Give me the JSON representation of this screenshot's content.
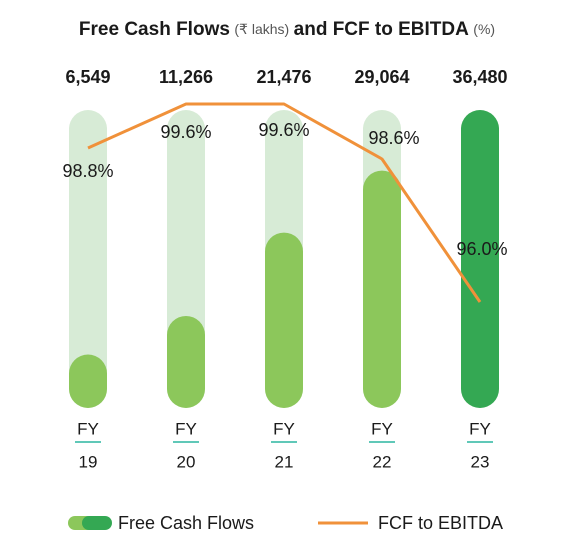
{
  "chart_data": {
    "type": "bar_line",
    "title": [
      "Free Cash Flows",
      "(₹ lakhs)",
      "and FCF to EBITDA",
      "(%)"
    ],
    "categories": [
      [
        "FY",
        "19"
      ],
      [
        "FY",
        "20"
      ],
      [
        "FY",
        "21"
      ],
      [
        "FY",
        "22"
      ],
      [
        "FY",
        "23"
      ]
    ],
    "series": [
      {
        "name": "Free Cash Flows",
        "type": "bar",
        "colors": [
          "#8cc75b",
          "#8cc75b",
          "#8cc75b",
          "#8cc75b",
          "#34a853"
        ],
        "values": [
          6549,
          11266,
          21476,
          29064,
          36480
        ],
        "value_labels": [
          "6,549",
          "11,266",
          "21,476",
          "29,064",
          "36,480"
        ]
      },
      {
        "name": "FCF to EBITDA",
        "type": "line",
        "axis": "y2",
        "color": "#f0913a",
        "values": [
          98.8,
          99.6,
          99.6,
          98.6,
          96.0
        ],
        "value_labels": [
          "98.8%",
          "99.6%",
          "99.6%",
          "98.6%",
          "96.0%"
        ]
      }
    ],
    "ylim": [
      0,
      36480
    ],
    "y2lim": [
      94,
      100
    ],
    "track_color": "#d7ebd6",
    "divider_color": "#2bb5a0"
  }
}
